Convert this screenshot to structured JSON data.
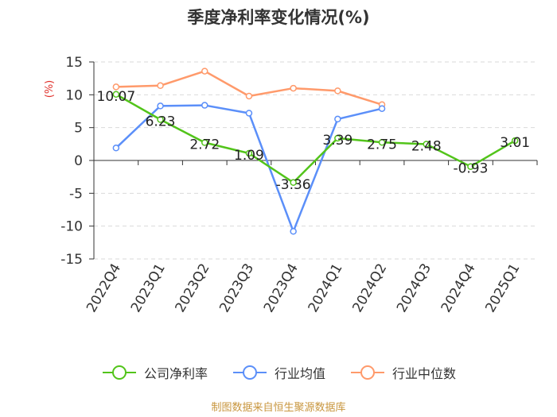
{
  "title": "季度净利率变化情况(%)",
  "source": "制图数据来自恒生聚源数据库",
  "chart_data": {
    "type": "line",
    "categories": [
      "2022Q4",
      "2023Q1",
      "2023Q2",
      "2023Q3",
      "2023Q4",
      "2024Q1",
      "2024Q2",
      "2024Q3",
      "2024Q4",
      "2025Q1"
    ],
    "ylabel": "(%)",
    "ylim": [
      -15,
      15
    ],
    "yticks": [
      15,
      10,
      5,
      0,
      -5,
      -10,
      -15
    ],
    "grid": true,
    "legend_position": "bottom",
    "series": [
      {
        "name": "公司净利率",
        "color": "#52c41a",
        "values": [
          10.07,
          6.23,
          2.72,
          1.09,
          -3.36,
          3.39,
          2.75,
          2.48,
          -0.93,
          3.01
        ],
        "labels": [
          "10.07",
          "6.23",
          "2.72",
          "1.09",
          "-3.36",
          "3.39",
          "2.75",
          "2.48",
          "-0.93",
          "3.01"
        ]
      },
      {
        "name": "行业均值",
        "color": "#5b8ff9",
        "values": [
          1.9,
          8.3,
          8.4,
          7.2,
          -10.8,
          6.3,
          7.9,
          null,
          null,
          null
        ]
      },
      {
        "name": "行业中位数",
        "color": "#ff9a6b",
        "values": [
          11.2,
          11.4,
          13.6,
          9.8,
          11.0,
          10.6,
          8.5,
          null,
          null,
          null
        ]
      }
    ]
  }
}
